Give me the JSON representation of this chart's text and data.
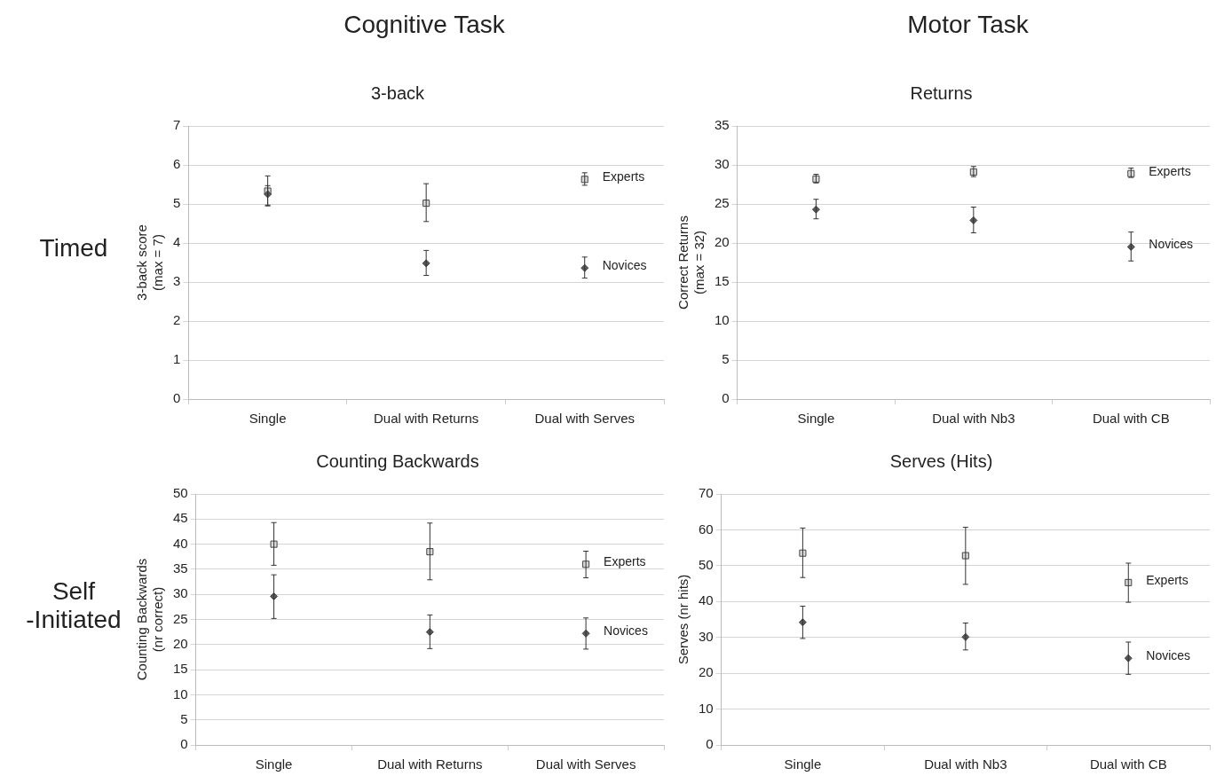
{
  "chart_data": [
    {
      "type": "scatter",
      "title": "3-back",
      "ylabel": "3-back score\n(max = 7)",
      "annotations": [
        "Cognitive Task",
        "Timed"
      ],
      "categories": [
        "Single",
        "Dual with Returns",
        "Dual with Serves"
      ],
      "ylim": [
        0,
        7
      ],
      "yticks": [
        0,
        1,
        2,
        3,
        4,
        5,
        6,
        7
      ],
      "grid": "y",
      "legend": false,
      "series": [
        {
          "name": "Experts",
          "color": "#d9d9d9",
          "marker": "square",
          "values": [
            5.33,
            5.02,
            5.63
          ],
          "errors": [
            [
              4.97,
              5.72
            ],
            [
              4.55,
              5.52
            ],
            [
              5.48,
              5.8
            ]
          ]
        },
        {
          "name": "Novices",
          "color": "#595959",
          "marker": "diamond",
          "values": [
            5.25,
            3.48,
            3.36
          ],
          "errors": [
            [
              4.95,
              5.47
            ],
            [
              3.17,
              3.81
            ],
            [
              3.1,
              3.64
            ]
          ]
        }
      ]
    },
    {
      "type": "scatter",
      "title": "Returns",
      "ylabel": "Correct Returns\n(max = 32)",
      "annotations": [
        "Motor Task"
      ],
      "categories": [
        "Single",
        "Dual with Nb3",
        "Dual with CB"
      ],
      "ylim": [
        0,
        35
      ],
      "yticks": [
        0,
        5,
        10,
        15,
        20,
        25,
        30,
        35
      ],
      "grid": "y",
      "legend": false,
      "series": [
        {
          "name": "Experts",
          "color": "#d9d9d9",
          "marker": "square",
          "values": [
            28.2,
            29.1,
            28.9
          ],
          "errors": [
            [
              27.7,
              28.8
            ],
            [
              28.5,
              29.8
            ],
            [
              28.4,
              29.6
            ]
          ]
        },
        {
          "name": "Novices",
          "color": "#595959",
          "marker": "diamond",
          "values": [
            24.3,
            22.9,
            19.5
          ],
          "errors": [
            [
              23.1,
              25.6
            ],
            [
              21.3,
              24.6
            ],
            [
              17.7,
              21.4
            ]
          ]
        }
      ]
    },
    {
      "type": "scatter",
      "title": "Counting Backwards",
      "ylabel": "Counting Backwards\n(nr correct)",
      "annotations": [
        "Self\n-Initiated"
      ],
      "categories": [
        "Single",
        "Dual with Returns",
        "Dual with Serves"
      ],
      "ylim": [
        0,
        50
      ],
      "yticks": [
        0,
        5,
        10,
        15,
        20,
        25,
        30,
        35,
        40,
        45,
        50
      ],
      "grid": "y",
      "legend": false,
      "series": [
        {
          "name": "Experts",
          "color": "#d9d9d9",
          "marker": "square",
          "values": [
            40,
            38.5,
            36
          ],
          "errors": [
            [
              35.8,
              44.3
            ],
            [
              32.9,
              44.2
            ],
            [
              33.3,
              38.6
            ]
          ]
        },
        {
          "name": "Novices",
          "color": "#595959",
          "marker": "diamond",
          "values": [
            29.6,
            22.5,
            22.2
          ],
          "errors": [
            [
              25.2,
              33.9
            ],
            [
              19.2,
              25.9
            ],
            [
              19.1,
              25.3
            ]
          ]
        }
      ]
    },
    {
      "type": "scatter",
      "title": "Serves (Hits)",
      "ylabel": "Serves (nr hits)",
      "categories": [
        "Single",
        "Dual with Nb3",
        "Dual with CB"
      ],
      "ylim": [
        0,
        70
      ],
      "yticks": [
        0,
        10,
        20,
        30,
        40,
        50,
        60,
        70
      ],
      "grid": "y",
      "legend": false,
      "series": [
        {
          "name": "Experts",
          "color": "#d9d9d9",
          "marker": "square",
          "values": [
            53.5,
            52.8,
            45.3
          ],
          "errors": [
            [
              46.7,
              60.5
            ],
            [
              44.8,
              60.7
            ],
            [
              39.8,
              50.7
            ]
          ]
        },
        {
          "name": "Novices",
          "color": "#595959",
          "marker": "diamond",
          "values": [
            34.2,
            30.1,
            24.2
          ],
          "errors": [
            [
              29.7,
              38.7
            ],
            [
              26.5,
              34
            ],
            [
              19.7,
              28.7
            ]
          ]
        }
      ]
    }
  ]
}
